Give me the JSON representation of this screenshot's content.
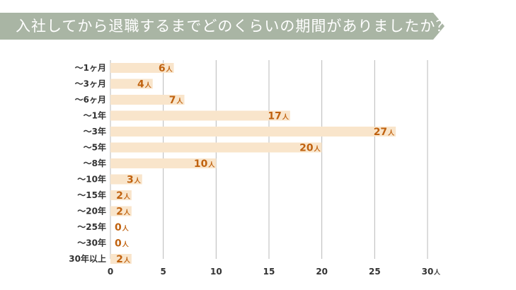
{
  "header": {
    "title": "入社してから退職するまでどのくらいの期間がありましたか？"
  },
  "colors": {
    "banner": "#a9b5a4",
    "bar": "#f9e5cb",
    "grid": "#b8b8b8",
    "value_label": "#c0620f",
    "text": "#333333"
  },
  "chart_data": {
    "type": "bar",
    "orientation": "horizontal",
    "title": "入社してから退職するまでどのくらいの期間がありましたか？",
    "categories": [
      "～1ヶ月",
      "～3ヶ月",
      "～6ヶ月",
      "～1年",
      "～3年",
      "～5年",
      "～8年",
      "～10年",
      "～15年",
      "～20年",
      "～25年",
      "～30年",
      "30年以上"
    ],
    "values": [
      6,
      4,
      7,
      17,
      27,
      20,
      10,
      3,
      2,
      2,
      0,
      0,
      2
    ],
    "value_unit": "人",
    "xlim": [
      0,
      30
    ],
    "x_ticks": [
      "0",
      "5",
      "10",
      "15",
      "20",
      "25",
      "30"
    ],
    "x_tick_unit": "人",
    "grid": true,
    "legend": "none"
  }
}
